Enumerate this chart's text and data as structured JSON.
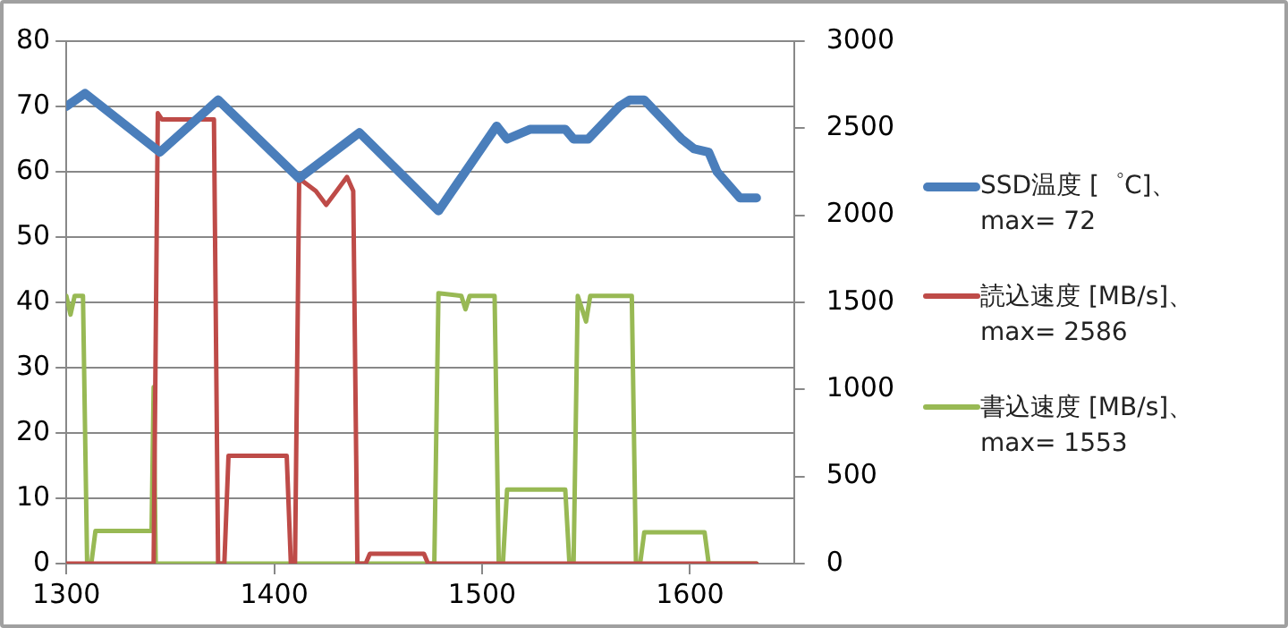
{
  "chart_data": {
    "type": "line",
    "xlim": [
      1300,
      1650
    ],
    "xticks": [
      1300,
      1400,
      1500,
      1600
    ],
    "ylim": [
      0,
      80
    ],
    "yticks": [
      0,
      10,
      20,
      30,
      40,
      50,
      60,
      70,
      80
    ],
    "y2lim": [
      0,
      3000
    ],
    "y2ticks": [
      0,
      500,
      1000,
      1500,
      2000,
      2500,
      3000
    ],
    "grid": "y",
    "legend": "right",
    "marker": "none",
    "line_style": "solid",
    "series": [
      {
        "name": "SSD温度 [゜C]、max= 72",
        "color": "#4a7ebb",
        "x": [
          1300,
          1309,
          1345,
          1373,
          1412,
          1441,
          1479,
          1507,
          1512,
          1523,
          1540,
          1544,
          1551,
          1566,
          1571,
          1578,
          1596,
          1602,
          1609,
          1613,
          1624,
          1632
        ],
        "values": [
          70,
          72,
          63,
          71,
          59,
          66,
          54,
          67,
          65,
          66.5,
          66.5,
          65,
          65,
          70,
          71,
          71,
          65,
          63.5,
          63,
          60,
          56,
          56
        ]
      },
      {
        "name": "読込速度 [MB/s]、 max= 2586",
        "color": "#be4b48",
        "axis": "y2",
        "x": [
          1300,
          1342,
          1344,
          1346,
          1371,
          1373,
          1376,
          1378,
          1406,
          1408,
          1410,
          1412,
          1420,
          1425,
          1430,
          1435,
          1438,
          1440,
          1444,
          1446,
          1472,
          1474,
          1632
        ],
        "values": [
          0,
          0,
          2586,
          2550,
          2550,
          0,
          0,
          619,
          619,
          0,
          0,
          2212,
          2140,
          2060,
          2140,
          2220,
          2140,
          0,
          0,
          56,
          56,
          0,
          0
        ]
      },
      {
        "name": "書込速度 [MB/s]、 max= 1553",
        "color": "#98b954",
        "axis": "y2",
        "x": [
          1300,
          1302,
          1304,
          1308,
          1310,
          1312,
          1314,
          1341,
          1342,
          1343,
          1477,
          1479,
          1490,
          1492,
          1494,
          1506,
          1508,
          1510,
          1512,
          1540,
          1542,
          1544,
          1546,
          1550,
          1552,
          1554,
          1572,
          1574,
          1576,
          1578,
          1607,
          1609,
          1632
        ],
        "values": [
          1537,
          1430,
          1537,
          1537,
          0,
          0,
          187,
          187,
          1013,
          0,
          0,
          1553,
          1537,
          1460,
          1537,
          1537,
          0,
          0,
          425,
          425,
          0,
          0,
          1537,
          1390,
          1537,
          1537,
          1537,
          0,
          0,
          180,
          180,
          0,
          0
        ]
      }
    ]
  }
}
